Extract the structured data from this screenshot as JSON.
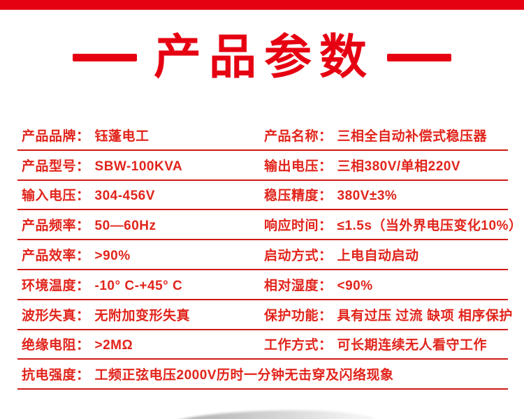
{
  "page": {
    "background_color": "#ffffff",
    "top_bar_color": "#e60112"
  },
  "title": {
    "text": "产品参数",
    "color": "#e60112"
  },
  "table": {
    "text_color": "#e1241b",
    "rule_color": "#cf1a14",
    "rows": [
      {
        "cells": [
          {
            "label": "产品品牌：",
            "value": "钰蓬电工"
          },
          {
            "label": "产品名称：",
            "value": "三相全自动补偿式稳压器"
          }
        ]
      },
      {
        "cells": [
          {
            "label": "产品型号：",
            "value": "SBW-100KVA"
          },
          {
            "label": "输出电压：",
            "value": "三相380V/单相220V"
          }
        ]
      },
      {
        "cells": [
          {
            "label": "输入电压：",
            "value": "304-456V"
          },
          {
            "label": "稳压精度：",
            "value": "380V±3%"
          }
        ]
      },
      {
        "cells": [
          {
            "label": "产品频率：",
            "value": "50—60Hz"
          },
          {
            "label": "响应时间：",
            "value": "≤1.5s（当外界电压变化10%）"
          }
        ]
      },
      {
        "cells": [
          {
            "label": "产品效率：",
            "value": ">90%"
          },
          {
            "label": "启动方式：",
            "value": "上电自动启动"
          }
        ]
      },
      {
        "cells": [
          {
            "label": "环境温度：",
            "value": "-10° C-+45° C"
          },
          {
            "label": "相对湿度：",
            "value": "<90%"
          }
        ]
      },
      {
        "cells": [
          {
            "label": "波形失真：",
            "value": "无附加变形失真"
          },
          {
            "label": "保护功能：",
            "value": "具有过压 过流 缺项 相序保护"
          }
        ]
      },
      {
        "cells": [
          {
            "label": "绝缘电阻：",
            "value": ">2MΩ"
          },
          {
            "label": "工作方式：",
            "value": "可长期连续无人看守工作"
          }
        ]
      },
      {
        "cells": [
          {
            "label": "抗电强度：",
            "value": "工频正弦电压2000V历时一分钟无击穿及闪络现象"
          }
        ]
      }
    ]
  }
}
